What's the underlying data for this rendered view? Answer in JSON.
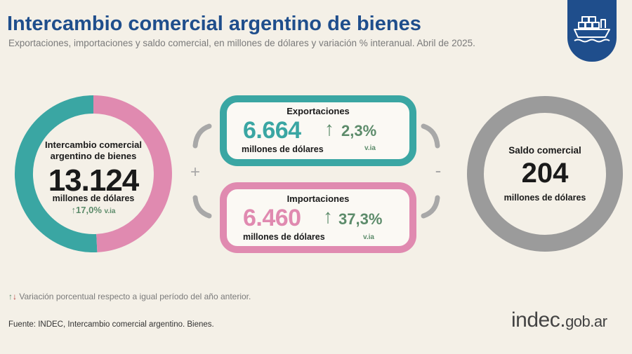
{
  "header": {
    "title": "Intercambio comercial argentino de bienes",
    "subtitle": "Exportaciones, importaciones y saldo comercial, en millones de dólares y variación % interanual. Abril de 2025."
  },
  "icon": "ship-icon",
  "colors": {
    "teal": "#3aa6a3",
    "pink": "#e08ab0",
    "gray": "#9b9b9b",
    "green": "#5c8b6a",
    "red": "#b5403b",
    "navy": "#1f4e8c",
    "background": "#f4f0e7"
  },
  "total": {
    "label_line1": "Intercambio comercial",
    "label_line2": "argentino de bienes",
    "value": "13.124",
    "unit": "millones de dólares",
    "arrow": "↑",
    "variation": "17,0%",
    "via": "v.ia"
  },
  "exports": {
    "label": "Exportaciones",
    "value": "6.664",
    "unit": "millones de dólares",
    "arrow": "↑",
    "variation": "2,3%",
    "via": "v.ia"
  },
  "imports": {
    "label": "Importaciones",
    "value": "6.460",
    "unit": "millones de dólares",
    "arrow": "↑",
    "variation": "37,3%",
    "via": "v.ia"
  },
  "balance": {
    "label": "Saldo comercial",
    "value": "204",
    "unit": "millones de dólares"
  },
  "operators": {
    "plus": "+",
    "minus": "-"
  },
  "note": {
    "arrow_up": "↑",
    "arrow_down": "↓",
    "text": "Variación porcentual respecto a igual período del año anterior."
  },
  "source": "Fuente: INDEC, Intercambio comercial argentino. Bienes.",
  "logo": {
    "brand": "indec",
    "dot": ".",
    "domain": "gob.ar"
  },
  "chart_data": {
    "type": "pie",
    "categories": [
      "Exportaciones",
      "Importaciones"
    ],
    "values": [
      6664,
      6460
    ],
    "total": 13124,
    "balance": 204
  }
}
